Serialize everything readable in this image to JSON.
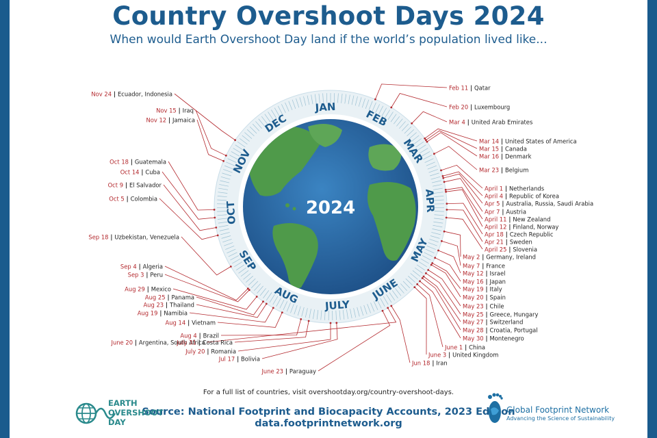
{
  "header": {
    "title": "Country Overshoot Days 2024",
    "subtitle": "When would Earth Overshoot Day land if the world’s population lived like..."
  },
  "colors": {
    "frame": "#1a5b8d",
    "title": "#1d5c8e",
    "date_text": "#b3282d",
    "leader_line": "#b3282d",
    "ocean": "#2e6fad",
    "land": "#4f9a4a",
    "month_text": "#1d5c8e"
  },
  "chart_data": {
    "type": "radial_date_chart",
    "title": "Country Overshoot Days 2024",
    "subtitle": "When would Earth Overshoot Day land if the world’s population lived like...",
    "center_label": "2024",
    "months": [
      "JAN",
      "FEB",
      "MAR",
      "APR",
      "MAY",
      "JUNE",
      "JULY",
      "AUG",
      "SEP",
      "OCT",
      "NOV",
      "DEC"
    ],
    "entries": [
      {
        "date": "Feb 11",
        "countries": "Qatar"
      },
      {
        "date": "Feb 20",
        "countries": "Luxembourg"
      },
      {
        "date": "Mar 4",
        "countries": "United Arab Emirates"
      },
      {
        "date": "Mar 14",
        "countries": "United States of America"
      },
      {
        "date": "Mar 15",
        "countries": "Canada"
      },
      {
        "date": "Mar 16",
        "countries": "Denmark"
      },
      {
        "date": "Mar 23",
        "countries": "Belgium"
      },
      {
        "date": "April 1",
        "countries": "Netherlands"
      },
      {
        "date": "April 4",
        "countries": "Republic of Korea"
      },
      {
        "date": "Apr 5",
        "countries": "Australia, Russia, Saudi Arabia"
      },
      {
        "date": "Apr 7",
        "countries": "Austria"
      },
      {
        "date": "April 11",
        "countries": "New Zealand"
      },
      {
        "date": "April 12",
        "countries": "Finland, Norway"
      },
      {
        "date": "Apr 18",
        "countries": "Czech Republic"
      },
      {
        "date": "Apr 21",
        "countries": "Sweden"
      },
      {
        "date": "April 25",
        "countries": "Slovenia"
      },
      {
        "date": "May 2",
        "countries": "Germany, Ireland"
      },
      {
        "date": "May 7",
        "countries": "France"
      },
      {
        "date": "May 12",
        "countries": "Israel"
      },
      {
        "date": "May 16",
        "countries": "Japan"
      },
      {
        "date": "May 19",
        "countries": "Italy"
      },
      {
        "date": "May 20",
        "countries": "Spain"
      },
      {
        "date": "May 23",
        "countries": "Chile"
      },
      {
        "date": "May 25",
        "countries": "Greece, Hungary"
      },
      {
        "date": "May 27",
        "countries": "Switzerland"
      },
      {
        "date": "May 28",
        "countries": "Croatia, Portugal"
      },
      {
        "date": "May 30",
        "countries": "Montenegro"
      },
      {
        "date": "June 1",
        "countries": "China"
      },
      {
        "date": "June 3",
        "countries": "United Kingdom"
      },
      {
        "date": "Jun 18",
        "countries": "Iran"
      },
      {
        "date": "June 20",
        "countries": "Argentina, South Africa"
      },
      {
        "date": "June 23",
        "countries": "Paraguay"
      },
      {
        "date": "Jul 17",
        "countries": "Bolivia"
      },
      {
        "date": "July 20",
        "countries": "Romania"
      },
      {
        "date": "July 31",
        "countries": "Costa Rica"
      },
      {
        "date": "Aug 4",
        "countries": "Brazil"
      },
      {
        "date": "Aug 14",
        "countries": "Vietnam"
      },
      {
        "date": "Aug 19",
        "countries": "Namibia"
      },
      {
        "date": "Aug 23",
        "countries": "Thailand"
      },
      {
        "date": "Aug 25",
        "countries": "Panama"
      },
      {
        "date": "Aug 29",
        "countries": "Mexico"
      },
      {
        "date": "Sep 3",
        "countries": "Peru"
      },
      {
        "date": "Sep 4",
        "countries": "Algeria"
      },
      {
        "date": "Sep 18",
        "countries": "Uzbekistan, Venezuela"
      },
      {
        "date": "Oct 5",
        "countries": "Colombia"
      },
      {
        "date": "Oct 9",
        "countries": "El Salvador"
      },
      {
        "date": "Oct 14",
        "countries": "Cuba"
      },
      {
        "date": "Oct 18",
        "countries": "Guatemala"
      },
      {
        "date": "Nov 12",
        "countries": "Jamaica"
      },
      {
        "date": "Nov 15",
        "countries": "Iraq"
      },
      {
        "date": "Nov 24",
        "countries": "Ecuador, Indonesia"
      }
    ]
  },
  "footer": {
    "list_note": "For a full list of countries, visit overshootday.org/country-overshoot-days.",
    "source": "Source: National Footprint and Biocapacity Accounts, 2023 Edition",
    "data_link": "data.footprintnetwork.org",
    "eod_logo_lines": [
      "EARTH",
      "OVERSHOOT",
      "DAY"
    ],
    "gfn_name": "Global Footprint Network",
    "gfn_tagline": "Advancing the Science of Sustainability"
  }
}
